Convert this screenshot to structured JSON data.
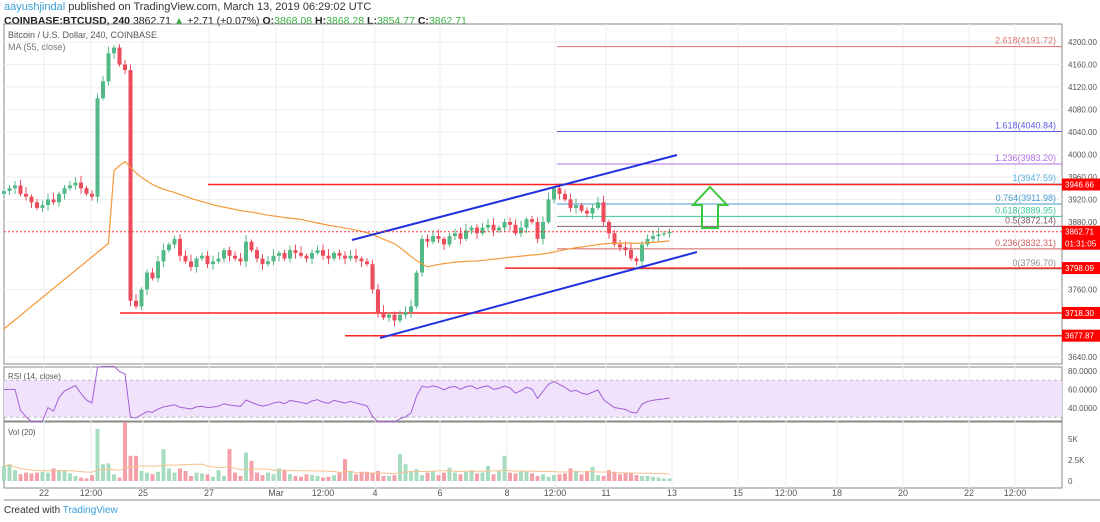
{
  "header": {
    "author": "aayushjindal",
    "published": "published on TradingView.com, March 13, 2019 06:29:02 UTC",
    "symbol": "COINBASE:BTCUSD, 240",
    "last": "3862.71",
    "change": "+2.71 (+0.07%)",
    "o_label": "O:",
    "o": "3868.08",
    "h_label": "H:",
    "h": "3868.28",
    "l_label": "L:",
    "l": "3854.77",
    "c_label": "C:",
    "c": "3862.71"
  },
  "footer": {
    "text": "Created with",
    "brand": "TradingView"
  },
  "colors": {
    "up": "#53b987",
    "down": "#eb4d5c",
    "ma": "#f59a3c",
    "rsi": "#a35fd6",
    "channel": "#2030e0",
    "level": "#ff2020"
  },
  "chart_data": {
    "type": "candlestick",
    "title": "Bitcoin / U.S. Dollar, 240, COINBASE",
    "ma_label": "MA (55, close)",
    "rsi_label": "RSI (14, close)",
    "vol_label": "Vol (20)",
    "ylim": [
      3620,
      4220
    ],
    "y_ticks": [
      "4200.00",
      "4160.00",
      "4120.00",
      "4080.00",
      "4040.00",
      "4000.00",
      "3960.00",
      "3920.00",
      "3880.00",
      "3760.00",
      "3640.00"
    ],
    "rsi_ticks": [
      "80.0000",
      "60.0000",
      "40.0000"
    ],
    "vol_ticks": [
      "5K",
      "2.5K",
      "0"
    ],
    "x_ticks": [
      "22",
      "12:00",
      "25",
      "27",
      "Mar",
      "12:00",
      "4",
      "6",
      "8",
      "12:00",
      "11",
      "13",
      "15",
      "12:00",
      "18",
      "20",
      "22",
      "12:00"
    ],
    "closes": [
      3935,
      3940,
      3945,
      3930,
      3925,
      3915,
      3905,
      3910,
      3920,
      3915,
      3930,
      3940,
      3945,
      3950,
      3940,
      3930,
      3925,
      4100,
      4130,
      4180,
      4190,
      4160,
      4150,
      3740,
      3730,
      3760,
      3790,
      3780,
      3810,
      3830,
      3840,
      3850,
      3820,
      3810,
      3800,
      3815,
      3820,
      3805,
      3810,
      3815,
      3830,
      3820,
      3815,
      3810,
      3845,
      3830,
      3815,
      3805,
      3810,
      3820,
      3825,
      3815,
      3830,
      3825,
      3820,
      3815,
      3825,
      3830,
      3820,
      3815,
      3825,
      3820,
      3815,
      3820,
      3815,
      3810,
      3805,
      3760,
      3720,
      3710,
      3715,
      3705,
      3715,
      3720,
      3730,
      3790,
      3850,
      3845,
      3855,
      3850,
      3840,
      3855,
      3860,
      3850,
      3865,
      3870,
      3860,
      3870,
      3875,
      3865,
      3870,
      3880,
      3875,
      3860,
      3870,
      3885,
      3880,
      3850,
      3880,
      3920,
      3940,
      3930,
      3920,
      3905,
      3910,
      3900,
      3895,
      3905,
      3915,
      3880,
      3860,
      3840,
      3835,
      3830,
      3815,
      3810,
      3840,
      3850,
      3855,
      3858,
      3860,
      3862.71
    ],
    "volume_k": [
      1.8,
      2.0,
      1.3,
      0.8,
      1.0,
      0.9,
      1.0,
      1.1,
      1.0,
      1.5,
      1.3,
      1.2,
      0.9,
      0.6,
      0.4,
      0.3,
      0.7,
      6.2,
      2.0,
      2.1,
      0.8,
      0.4,
      7.0,
      3.0,
      3.0,
      1.2,
      1.0,
      0.8,
      1.1,
      3.8,
      1.5,
      1.0,
      1.5,
      1.2,
      0.6,
      1.0,
      0.9,
      0.8,
      0.5,
      1.3,
      0.6,
      3.8,
      1.0,
      0.6,
      3.4,
      2.4,
      1.0,
      0.7,
      1.0,
      0.8,
      1.5,
      1.3,
      0.8,
      0.6,
      0.5,
      0.8,
      0.7,
      0.6,
      0.4,
      0.5,
      0.7,
      1.0,
      2.6,
      1.2,
      0.8,
      1.1,
      1.1,
      1.0,
      1.2,
      0.6,
      0.6,
      0.7,
      3.2,
      2.0,
      1.2,
      1.4,
      0.7,
      1.0,
      1.2,
      0.7,
      1.0,
      1.6,
      1.0,
      0.8,
      1.1,
      1.3,
      0.9,
      1.0,
      1.8,
      0.8,
      1.2,
      3.0,
      1.0,
      0.9,
      1.2,
      1.1,
      0.9,
      0.6,
      0.8,
      0.5,
      0.7,
      0.8,
      0.9,
      1.5,
      1.2,
      0.8,
      1.2,
      1.7,
      0.7,
      0.6,
      1.3,
      1.1,
      0.8,
      1.0,
      0.9,
      0.7,
      0.6,
      0.6,
      0.5,
      0.4,
      0.3,
      0.3
    ],
    "levels": [
      {
        "price": 3946.66,
        "label": "3946.66"
      },
      {
        "price": 3798.09,
        "label": "3798.09"
      },
      {
        "price": 3718.3,
        "label": "3718.30"
      },
      {
        "price": 3677.87,
        "label": "3677.87"
      }
    ],
    "fib": [
      {
        "label": "2.618(4191.72)",
        "price": 4191.72,
        "color": "#e07070"
      },
      {
        "label": "1.618(4040.84)",
        "price": 4040.84,
        "color": "#5b5be0"
      },
      {
        "label": "1.236(3983.20)",
        "price": 3983.2,
        "color": "#b070e0"
      },
      {
        "label": "1(3947.59)",
        "price": 3947.59,
        "color": "#5ab0e0"
      },
      {
        "label": "0.764(3911.98)",
        "price": 3911.98,
        "color": "#4a9ad0"
      },
      {
        "label": "0.618(3889.95)",
        "price": 3889.95,
        "color": "#3cc890"
      },
      {
        "label": "0.5(3872.14)",
        "price": 3872.14,
        "color": "#806070"
      },
      {
        "label": "0.236(3832.31)",
        "price": 3832.31,
        "color": "#d06060"
      },
      {
        "label": "0(3796.70)",
        "price": 3796.7,
        "color": "#909090"
      }
    ],
    "last_price": "3862.71",
    "countdown": "01:31:05"
  }
}
